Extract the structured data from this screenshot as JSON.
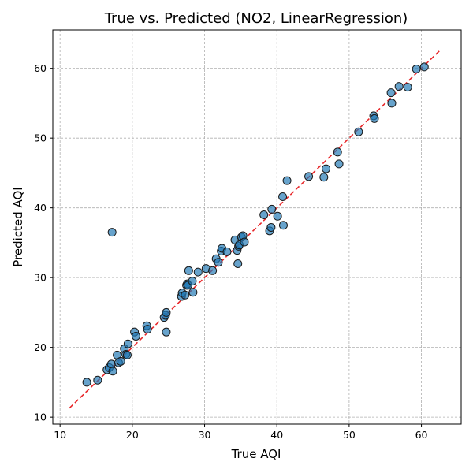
{
  "chart_data": {
    "type": "scatter",
    "title": "True vs. Predicted (NO2, LinearRegression)",
    "xlabel": "True AQI",
    "ylabel": "Predicted AQI",
    "xlim": [
      9,
      65.5
    ],
    "ylim": [
      9,
      65.5
    ],
    "xticks": [
      10,
      20,
      30,
      40,
      50,
      60
    ],
    "yticks": [
      10,
      20,
      30,
      40,
      50,
      60
    ],
    "grid": true,
    "marker_color": "#1f77b4",
    "marker_edge": "#1a1a1a",
    "reference_line": {
      "x": [
        11.3,
        62.7
      ],
      "y": [
        11.3,
        62.7
      ],
      "color": "#e8272a",
      "style": "dashed"
    },
    "points": [
      {
        "x": 13.7,
        "y": 15.0
      },
      {
        "x": 15.2,
        "y": 15.3
      },
      {
        "x": 16.5,
        "y": 16.8
      },
      {
        "x": 16.8,
        "y": 17.1
      },
      {
        "x": 17.1,
        "y": 17.6
      },
      {
        "x": 17.3,
        "y": 16.6
      },
      {
        "x": 17.9,
        "y": 18.9
      },
      {
        "x": 18.1,
        "y": 17.8
      },
      {
        "x": 18.4,
        "y": 18.0
      },
      {
        "x": 18.9,
        "y": 19.8
      },
      {
        "x": 19.1,
        "y": 19.0
      },
      {
        "x": 19.3,
        "y": 18.9
      },
      {
        "x": 19.4,
        "y": 20.5
      },
      {
        "x": 20.3,
        "y": 22.2
      },
      {
        "x": 20.5,
        "y": 21.6
      },
      {
        "x": 22.0,
        "y": 23.1
      },
      {
        "x": 22.1,
        "y": 22.6
      },
      {
        "x": 24.4,
        "y": 24.3
      },
      {
        "x": 24.6,
        "y": 24.6
      },
      {
        "x": 24.7,
        "y": 25.0
      },
      {
        "x": 24.7,
        "y": 22.2
      },
      {
        "x": 26.8,
        "y": 27.3
      },
      {
        "x": 26.9,
        "y": 27.8
      },
      {
        "x": 27.3,
        "y": 27.5
      },
      {
        "x": 27.5,
        "y": 28.9
      },
      {
        "x": 27.6,
        "y": 29.1
      },
      {
        "x": 27.7,
        "y": 28.9
      },
      {
        "x": 27.8,
        "y": 31.0
      },
      {
        "x": 28.3,
        "y": 29.5
      },
      {
        "x": 28.4,
        "y": 27.9
      },
      {
        "x": 29.1,
        "y": 30.8
      },
      {
        "x": 30.2,
        "y": 31.3
      },
      {
        "x": 31.1,
        "y": 31.0
      },
      {
        "x": 31.6,
        "y": 32.7
      },
      {
        "x": 31.9,
        "y": 32.2
      },
      {
        "x": 32.3,
        "y": 33.8
      },
      {
        "x": 32.4,
        "y": 34.2
      },
      {
        "x": 33.1,
        "y": 33.7
      },
      {
        "x": 34.2,
        "y": 35.4
      },
      {
        "x": 34.5,
        "y": 33.9
      },
      {
        "x": 34.7,
        "y": 34.5
      },
      {
        "x": 34.8,
        "y": 34.7
      },
      {
        "x": 34.6,
        "y": 32.0
      },
      {
        "x": 35.1,
        "y": 35.8
      },
      {
        "x": 35.3,
        "y": 36.0
      },
      {
        "x": 35.5,
        "y": 35.1
      },
      {
        "x": 38.2,
        "y": 39.0
      },
      {
        "x": 39.0,
        "y": 36.7
      },
      {
        "x": 39.2,
        "y": 37.2
      },
      {
        "x": 39.3,
        "y": 39.8
      },
      {
        "x": 40.1,
        "y": 38.8
      },
      {
        "x": 40.8,
        "y": 41.6
      },
      {
        "x": 40.9,
        "y": 37.5
      },
      {
        "x": 41.4,
        "y": 43.9
      },
      {
        "x": 44.4,
        "y": 44.5
      },
      {
        "x": 46.5,
        "y": 44.4
      },
      {
        "x": 46.8,
        "y": 45.6
      },
      {
        "x": 48.4,
        "y": 48.0
      },
      {
        "x": 48.6,
        "y": 46.3
      },
      {
        "x": 51.3,
        "y": 50.9
      },
      {
        "x": 53.4,
        "y": 53.2
      },
      {
        "x": 53.5,
        "y": 52.8
      },
      {
        "x": 55.8,
        "y": 56.5
      },
      {
        "x": 55.9,
        "y": 55.0
      },
      {
        "x": 56.9,
        "y": 57.4
      },
      {
        "x": 58.1,
        "y": 57.3
      },
      {
        "x": 59.3,
        "y": 59.9
      },
      {
        "x": 60.4,
        "y": 60.2
      },
      {
        "x": 17.2,
        "y": 36.5
      }
    ]
  }
}
